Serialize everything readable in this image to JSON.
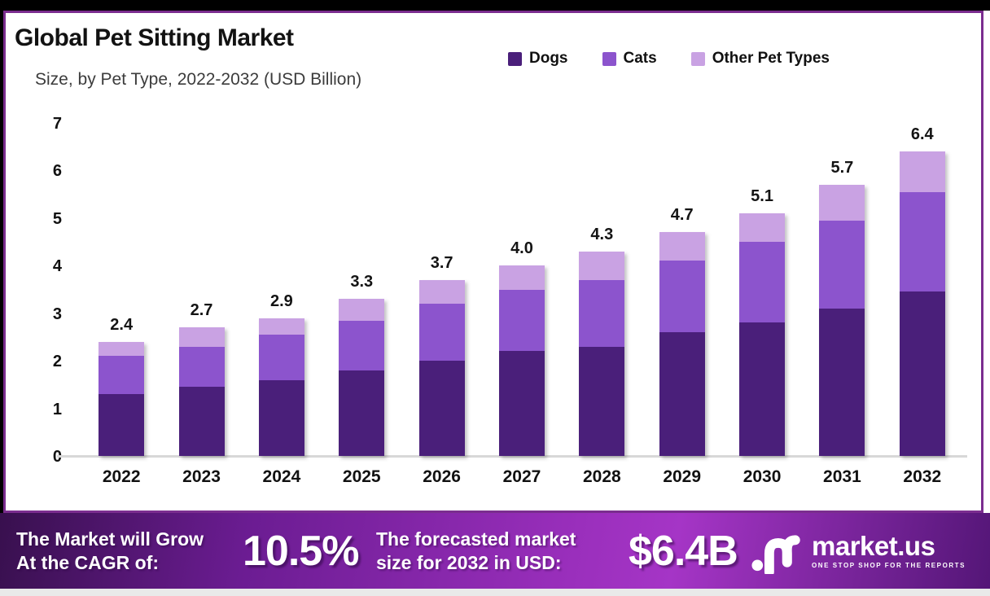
{
  "frame": {
    "border_color": "#7B2D8F",
    "top_strip_color": "#000000",
    "background": "#FFFFFF"
  },
  "header": {
    "title": "Global Pet Sitting Market",
    "subtitle": "Size, by Pet Type, 2022-2032 (USD Billion)"
  },
  "chart_data": {
    "type": "bar",
    "stacked": true,
    "title": "Global Pet Sitting Market Size, by Pet Type, 2022-2032 (USD Billion)",
    "categories": [
      "2022",
      "2023",
      "2024",
      "2025",
      "2026",
      "2027",
      "2028",
      "2029",
      "2030",
      "2031",
      "2032"
    ],
    "series": [
      {
        "name": "Dogs",
        "color": "#4A1F7A",
        "values": [
          1.3,
          1.45,
          1.6,
          1.8,
          2.0,
          2.2,
          2.3,
          2.6,
          2.8,
          3.1,
          3.45
        ]
      },
      {
        "name": "Cats",
        "color": "#8C54CD",
        "values": [
          0.8,
          0.85,
          0.95,
          1.05,
          1.2,
          1.3,
          1.4,
          1.5,
          1.7,
          1.85,
          2.1
        ]
      },
      {
        "name": "Other Pet Types",
        "color": "#C9A2E3",
        "values": [
          0.3,
          0.4,
          0.35,
          0.45,
          0.5,
          0.5,
          0.6,
          0.6,
          0.6,
          0.75,
          0.85
        ]
      }
    ],
    "totals": [
      2.4,
      2.7,
      2.9,
      3.3,
      3.7,
      4.0,
      4.3,
      4.7,
      5.1,
      5.7,
      6.4
    ],
    "total_labels": [
      "2.4",
      "2.7",
      "2.9",
      "3.3",
      "3.7",
      "4.0",
      "4.3",
      "4.7",
      "5.1",
      "5.7",
      "6.4"
    ],
    "y_ticks": [
      "0",
      "1",
      "2",
      "3",
      "4",
      "5",
      "6",
      "7"
    ],
    "ylim": [
      0,
      7
    ],
    "xlabel": "",
    "ylabel": "",
    "grid": false,
    "legend_position": "top-right",
    "axis_line_color": "#D8D8D8"
  },
  "banner": {
    "cagr_label_line1": "The Market will Grow",
    "cagr_label_line2": "At the CAGR of:",
    "cagr_value": "10.5%",
    "forecast_label_line1": "The forecasted market",
    "forecast_label_line2": "size for 2032 in USD:",
    "forecast_value": "$6.4B",
    "gradient": [
      "#38104E",
      "#9A2FBC",
      "#541677"
    ],
    "logo": {
      "text": "market.us",
      "tagline": "ONE STOP SHOP FOR THE REPORTS"
    }
  }
}
